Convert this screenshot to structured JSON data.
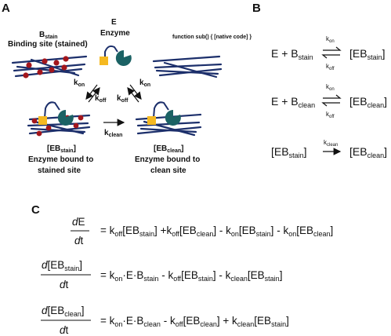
{
  "panels": {
    "a": "A",
    "b": "B",
    "c": "C"
  },
  "panel_a": {
    "stain": {
      "main": "B",
      "sub": "stain",
      "desc": "Binding site (stained)"
    },
    "enzyme": {
      "title": "E",
      "desc": "Enzyme"
    },
    "clean": "clean",
    "k_on": "k",
    "on": "on",
    "k_off": "k",
    "off": "off",
    "k_clean": "k",
    "eb_stain": {
      "open": "[EB",
      "sub": "stain",
      "close": "]",
      "desc1": "Enzyme bound to",
      "desc2": "stained site"
    },
    "eb_clean": {
      "open": "[EB",
      "sub": "clean",
      "close": "]",
      "desc1": "Enzyme bound to",
      "desc2": "clean site"
    }
  },
  "panel_b": {
    "eq1": {
      "left": "E + B",
      "left_sub": "stain",
      "right": "[EB",
      "right_sub": "stain",
      "right_close": "]"
    },
    "eq2": {
      "left": "E + B",
      "left_sub": "clean",
      "right": "[EB",
      "right_sub": "clean",
      "right_close": "]"
    },
    "eq3": {
      "left": "[EB",
      "left_sub": "stain",
      "left_close": "]",
      "right": "[EB",
      "right_sub": "clean",
      "right_close": "]"
    },
    "k": "k",
    "on": "on",
    "off": "off",
    "clean": "clean"
  },
  "panel_c": {
    "d": "d",
    "E": "E",
    "t": "t",
    "eq": "=",
    "eb_open": "[EB",
    "close": "]",
    "stain": "stain",
    "clean": "clean",
    "k": "k",
    "on": "on",
    "off": "off",
    "kclean": "clean",
    "dotE": "·E·B",
    "plus": "+",
    "minus": "-"
  }
}
